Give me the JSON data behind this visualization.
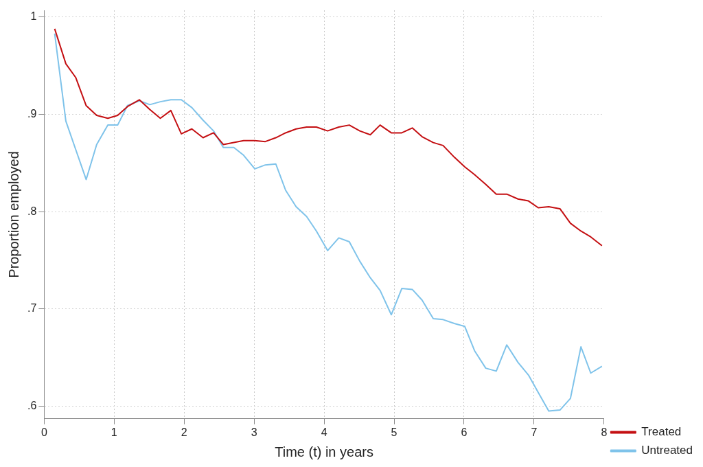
{
  "chart_data": {
    "type": "line",
    "xlabel": "Time (t) in years",
    "ylabel": "Proportion employed",
    "x": [
      0.15,
      0.31,
      0.45,
      0.6,
      0.75,
      0.91,
      1.05,
      1.19,
      1.36,
      1.51,
      1.66,
      1.81,
      1.96,
      2.11,
      2.27,
      2.42,
      2.56,
      2.71,
      2.85,
      3.01,
      3.16,
      3.31,
      3.45,
      3.6,
      3.75,
      3.89,
      4.05,
      4.21,
      4.36,
      4.51,
      4.66,
      4.8,
      4.96,
      5.11,
      5.26,
      5.4,
      5.56,
      5.7,
      5.86,
      6.01,
      6.15,
      6.31,
      6.46,
      6.61,
      6.77,
      6.92,
      7.06,
      7.21,
      7.37,
      7.52,
      7.67,
      7.81,
      7.97
    ],
    "series": [
      {
        "name": "Treated",
        "color": "#c40f12",
        "values": [
          0.988,
          0.952,
          0.938,
          0.909,
          0.899,
          0.896,
          0.899,
          0.908,
          0.915,
          0.905,
          0.896,
          0.904,
          0.88,
          0.885,
          0.876,
          0.881,
          0.869,
          0.871,
          0.873,
          0.873,
          0.872,
          0.876,
          0.881,
          0.885,
          0.887,
          0.887,
          0.883,
          0.887,
          0.889,
          0.883,
          0.879,
          0.889,
          0.881,
          0.881,
          0.886,
          0.877,
          0.871,
          0.868,
          0.856,
          0.846,
          0.838,
          0.828,
          0.818,
          0.818,
          0.813,
          0.811,
          0.804,
          0.805,
          0.803,
          0.788,
          0.78,
          0.774,
          0.765
        ]
      },
      {
        "name": "Untreated",
        "color": "#7fc3ea",
        "values": [
          0.983,
          0.893,
          0.864,
          0.833,
          0.869,
          0.889,
          0.889,
          0.909,
          0.914,
          0.91,
          0.913,
          0.915,
          0.915,
          0.907,
          0.894,
          0.883,
          0.866,
          0.866,
          0.858,
          0.844,
          0.848,
          0.849,
          0.822,
          0.805,
          0.795,
          0.78,
          0.76,
          0.773,
          0.769,
          0.749,
          0.732,
          0.719,
          0.694,
          0.721,
          0.72,
          0.709,
          0.69,
          0.689,
          0.685,
          0.682,
          0.657,
          0.639,
          0.636,
          0.663,
          0.645,
          0.632,
          0.614,
          0.595,
          0.596,
          0.608,
          0.661,
          0.634,
          0.641
        ]
      }
    ],
    "xlim": [
      0,
      8
    ],
    "xticks": [
      0,
      1,
      2,
      3,
      4,
      5,
      6,
      7,
      8
    ],
    "ylim": [
      0.587,
      1.007
    ],
    "yticks": [
      {
        "value": 0.6,
        "label": ".6"
      },
      {
        "value": 0.7,
        "label": ".7"
      },
      {
        "value": 0.8,
        "label": ".8"
      },
      {
        "value": 0.9,
        "label": ".9"
      },
      {
        "value": 1,
        "label": "1"
      }
    ],
    "grid": true,
    "legend": "bottom right",
    "marker": "none",
    "line_style": "solid"
  }
}
